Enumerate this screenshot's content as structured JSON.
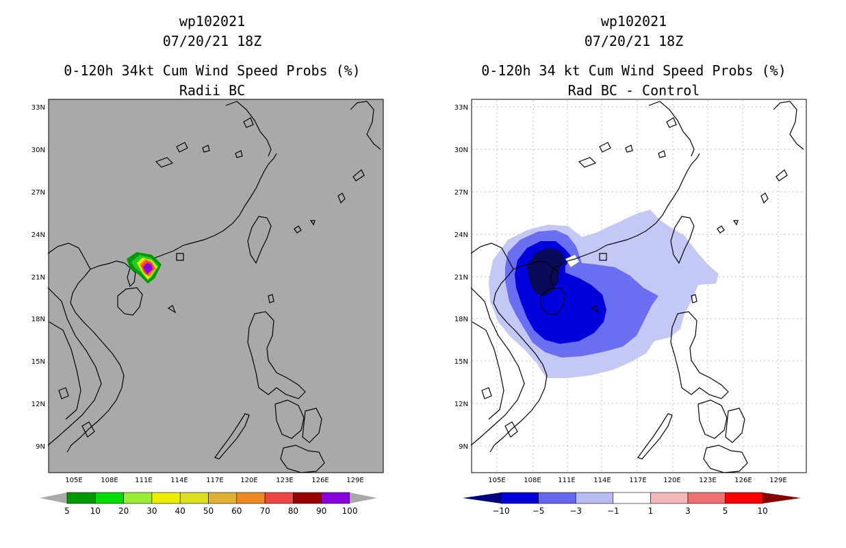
{
  "left": {
    "id": "wp102021",
    "datetime": "07/20/21 18Z",
    "title": "0-120h 34kt Cum Wind Speed Probs (%)",
    "subtitle": "Radii BC",
    "colorbar_labels": [
      "5",
      "10",
      "20",
      "30",
      "40",
      "50",
      "60",
      "70",
      "80",
      "90",
      "100"
    ],
    "colorbar_colors": [
      "#009900",
      "#00dd00",
      "#99ee33",
      "#eeee00",
      "#dddd22",
      "#e0b030",
      "#ee8822",
      "#ee4444",
      "#990000",
      "#8800dd"
    ]
  },
  "right": {
    "id": "wp102021",
    "datetime": "07/20/21 18Z",
    "title": "0-120h 34 kt Cum Wind Speed Probs (%)",
    "subtitle": "Rad BC - Control",
    "colorbar_labels": [
      "-10",
      "-5",
      "-3",
      "-1",
      "1",
      "3",
      "5",
      "10"
    ],
    "colorbar_colors": [
      "#0000dd",
      "#6666ee",
      "#b8bcf2",
      "#ffffff",
      "#f4b8b8",
      "#f07070",
      "#ff0000"
    ]
  },
  "axes": {
    "lon_labels": [
      "105E",
      "108E",
      "111E",
      "114E",
      "117E",
      "120E",
      "123E",
      "126E",
      "129E"
    ],
    "lat_labels": [
      "33N",
      "30N",
      "27N",
      "24N",
      "21N",
      "18N",
      "15N",
      "12N",
      "9N"
    ]
  },
  "colors": {
    "land_ocean_left": "#a9a9a9",
    "neg_light": "#c4c8f4",
    "neg_mid": "#6a6ef0",
    "neg_strong": "#0000dd",
    "neg_darkest": "#0a0a5a"
  }
}
